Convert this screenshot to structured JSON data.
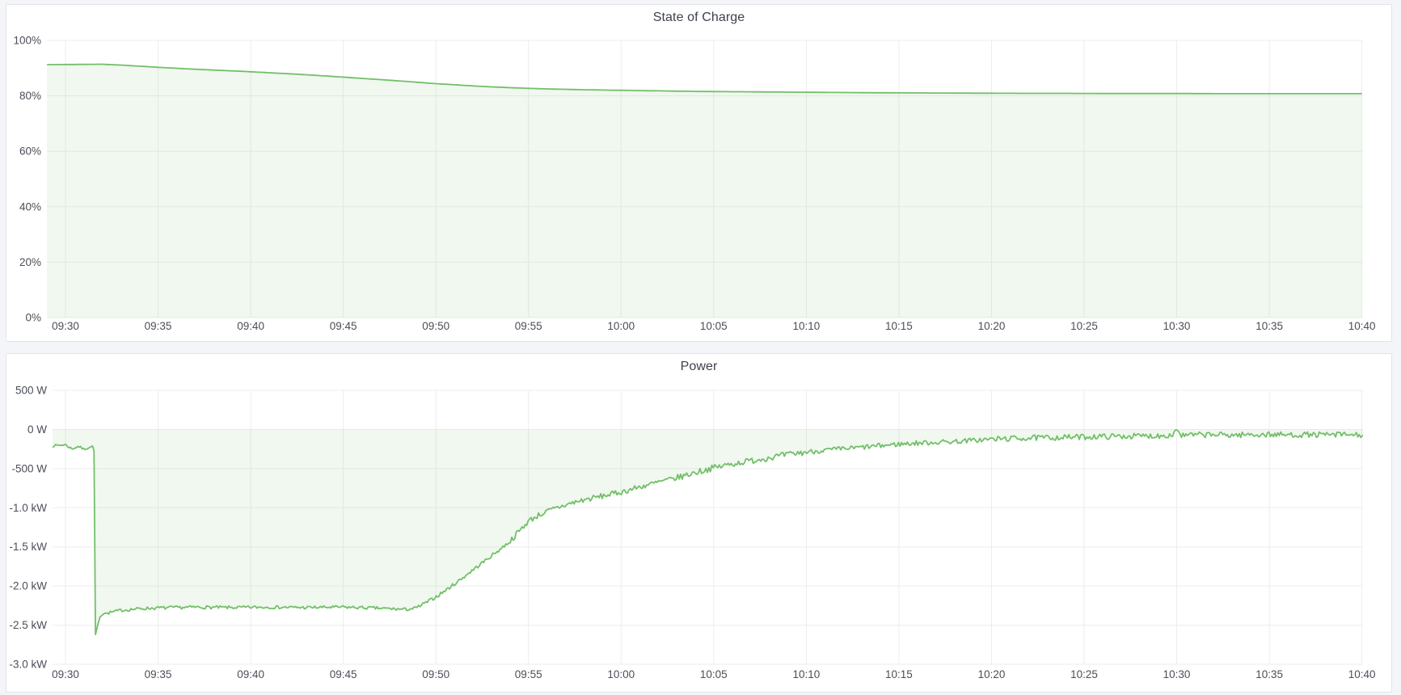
{
  "page": {
    "background_color": "#f4f5f9",
    "panel_background": "#ffffff",
    "panel_border_color": "#e2e3e9",
    "grid_color": "#ededf0",
    "axis_text_color": "#4c4e58",
    "title_color": "#3e414b",
    "accent_green": "#73bf69"
  },
  "panels": [
    {
      "title": "State of Charge"
    },
    {
      "title": "Power"
    }
  ],
  "chart_data": [
    {
      "type": "area",
      "title": "State of Charge",
      "ylabel": "",
      "xlabel": "",
      "legend": "none",
      "grid": "on",
      "line_color": "#73bf69",
      "fill_color": "rgba(115,191,105,0.11)",
      "baseline_value": 0,
      "ylim": [
        0,
        100
      ],
      "xlim": [
        -1,
        70.1
      ],
      "sample_step": 0.25,
      "noise_seed": 11,
      "noise_segments": [],
      "y_ticks": [
        {
          "value": 100,
          "label": "100%"
        },
        {
          "value": 80,
          "label": "80%"
        },
        {
          "value": 60,
          "label": "60%"
        },
        {
          "value": 40,
          "label": "40%"
        },
        {
          "value": 20,
          "label": "20%"
        },
        {
          "value": 0,
          "label": "0%"
        }
      ],
      "x_ticks": [
        {
          "t": 0,
          "label": "09:30"
        },
        {
          "t": 5,
          "label": "09:35"
        },
        {
          "t": 10,
          "label": "09:40"
        },
        {
          "t": 15,
          "label": "09:45"
        },
        {
          "t": 20,
          "label": "09:50"
        },
        {
          "t": 25,
          "label": "09:55"
        },
        {
          "t": 30,
          "label": "10:00"
        },
        {
          "t": 35,
          "label": "10:05"
        },
        {
          "t": 40,
          "label": "10:10"
        },
        {
          "t": 45,
          "label": "10:15"
        },
        {
          "t": 50,
          "label": "10:20"
        },
        {
          "t": 55,
          "label": "10:25"
        },
        {
          "t": 60,
          "label": "10:30"
        },
        {
          "t": 65,
          "label": "10:35"
        },
        {
          "t": 70,
          "label": "10:40"
        }
      ],
      "unit": "percent",
      "points": [
        [
          -1,
          91.25
        ],
        [
          0,
          91.3
        ],
        [
          1,
          91.35
        ],
        [
          2,
          91.4
        ],
        [
          3,
          91.1
        ],
        [
          4,
          90.7
        ],
        [
          5,
          90.3
        ],
        [
          6,
          89.95
        ],
        [
          7,
          89.6
        ],
        [
          8,
          89.3
        ],
        [
          9,
          89.0
        ],
        [
          10,
          88.7
        ],
        [
          11,
          88.35
        ],
        [
          12,
          88.0
        ],
        [
          13,
          87.6
        ],
        [
          14,
          87.2
        ],
        [
          15,
          86.75
        ],
        [
          16,
          86.3
        ],
        [
          17,
          85.85
        ],
        [
          18,
          85.4
        ],
        [
          19,
          84.9
        ],
        [
          20,
          84.4
        ],
        [
          21,
          84.0
        ],
        [
          22,
          83.6
        ],
        [
          23,
          83.25
        ],
        [
          24,
          82.95
        ],
        [
          25,
          82.7
        ],
        [
          26,
          82.5
        ],
        [
          27,
          82.35
        ],
        [
          28,
          82.2
        ],
        [
          29,
          82.1
        ],
        [
          30,
          82.0
        ],
        [
          31,
          81.9
        ],
        [
          32,
          81.8
        ],
        [
          33,
          81.7
        ],
        [
          34,
          81.6
        ],
        [
          35,
          81.55
        ],
        [
          36,
          81.5
        ],
        [
          37,
          81.45
        ],
        [
          38,
          81.4
        ],
        [
          39,
          81.35
        ],
        [
          40,
          81.3
        ],
        [
          42,
          81.2
        ],
        [
          44,
          81.1
        ],
        [
          46,
          81.05
        ],
        [
          48,
          81.0
        ],
        [
          50,
          80.95
        ],
        [
          52,
          80.9
        ],
        [
          54,
          80.9
        ],
        [
          56,
          80.85
        ],
        [
          58,
          80.85
        ],
        [
          60,
          80.85
        ],
        [
          62,
          80.8
        ],
        [
          64,
          80.8
        ],
        [
          66,
          80.8
        ],
        [
          68,
          80.8
        ],
        [
          70.1,
          80.8
        ]
      ]
    },
    {
      "type": "area",
      "title": "Power",
      "ylabel": "",
      "xlabel": "",
      "legend": "none",
      "grid": "on",
      "line_color": "#73bf69",
      "fill_color": "rgba(115,191,105,0.11)",
      "baseline_value": 0,
      "ylim": [
        -3000,
        500
      ],
      "xlim": [
        -0.7,
        70.1
      ],
      "sample_step": 0.08,
      "noise_seed": 7,
      "noise_segments": [
        [
          -0.7,
          1.5,
          15
        ],
        [
          1.5,
          2.3,
          0
        ],
        [
          2.3,
          18.6,
          20
        ],
        [
          18.6,
          24,
          22
        ],
        [
          24,
          33,
          36
        ],
        [
          33,
          40,
          40
        ],
        [
          40,
          50,
          32
        ],
        [
          50,
          70.2,
          36
        ]
      ],
      "y_ticks": [
        {
          "value": 500,
          "label": "500 W"
        },
        {
          "value": 0,
          "label": "0 W"
        },
        {
          "value": -500,
          "label": "-500 W"
        },
        {
          "value": -1000,
          "label": "-1.0 kW"
        },
        {
          "value": -1500,
          "label": "-1.5 kW"
        },
        {
          "value": -2000,
          "label": "-2.0 kW"
        },
        {
          "value": -2500,
          "label": "-2.5 kW"
        },
        {
          "value": -3000,
          "label": "-3.0 kW"
        }
      ],
      "x_ticks": [
        {
          "t": 0,
          "label": "09:30"
        },
        {
          "t": 5,
          "label": "09:35"
        },
        {
          "t": 10,
          "label": "09:40"
        },
        {
          "t": 15,
          "label": "09:45"
        },
        {
          "t": 20,
          "label": "09:50"
        },
        {
          "t": 25,
          "label": "09:55"
        },
        {
          "t": 30,
          "label": "10:00"
        },
        {
          "t": 35,
          "label": "10:05"
        },
        {
          "t": 40,
          "label": "10:10"
        },
        {
          "t": 45,
          "label": "10:15"
        },
        {
          "t": 50,
          "label": "10:20"
        },
        {
          "t": 55,
          "label": "10:25"
        },
        {
          "t": 60,
          "label": "10:30"
        },
        {
          "t": 65,
          "label": "10:35"
        },
        {
          "t": 70,
          "label": "10:40"
        }
      ],
      "unit": "watt",
      "points": [
        [
          -0.7,
          -210
        ],
        [
          -0.3,
          -200
        ],
        [
          0,
          -195
        ],
        [
          0.35,
          -250
        ],
        [
          0.7,
          -215
        ],
        [
          1,
          -255
        ],
        [
          1.3,
          -225
        ],
        [
          1.5,
          -218
        ],
        [
          1.56,
          -300
        ],
        [
          1.62,
          -2620
        ],
        [
          1.72,
          -2520
        ],
        [
          1.85,
          -2400
        ],
        [
          2.1,
          -2350
        ],
        [
          2.4,
          -2340
        ],
        [
          3,
          -2310
        ],
        [
          4,
          -2290
        ],
        [
          5,
          -2280
        ],
        [
          7,
          -2270
        ],
        [
          9,
          -2275
        ],
        [
          11,
          -2270
        ],
        [
          13,
          -2275
        ],
        [
          15,
          -2270
        ],
        [
          16.5,
          -2280
        ],
        [
          17.5,
          -2290
        ],
        [
          18.3,
          -2300
        ],
        [
          18.9,
          -2285
        ],
        [
          19.5,
          -2210
        ],
        [
          20,
          -2140
        ],
        [
          20.5,
          -2060
        ],
        [
          21,
          -1975
        ],
        [
          21.5,
          -1885
        ],
        [
          22,
          -1795
        ],
        [
          22.5,
          -1705
        ],
        [
          23,
          -1615
        ],
        [
          23.5,
          -1525
        ],
        [
          24,
          -1430
        ],
        [
          24.5,
          -1300
        ],
        [
          25,
          -1170
        ],
        [
          25.5,
          -1100
        ],
        [
          26,
          -1050
        ],
        [
          26.5,
          -1005
        ],
        [
          27,
          -965
        ],
        [
          27.5,
          -930
        ],
        [
          28,
          -900
        ],
        [
          28.5,
          -875
        ],
        [
          29,
          -850
        ],
        [
          29.5,
          -825
        ],
        [
          30,
          -800
        ],
        [
          31,
          -735
        ],
        [
          32,
          -675
        ],
        [
          33,
          -620
        ],
        [
          34,
          -550
        ],
        [
          35,
          -490
        ],
        [
          36,
          -440
        ],
        [
          37,
          -400
        ],
        [
          38,
          -360
        ],
        [
          39,
          -322
        ],
        [
          40,
          -290
        ],
        [
          41,
          -265
        ],
        [
          42,
          -248
        ],
        [
          43,
          -228
        ],
        [
          44,
          -208
        ],
        [
          45,
          -188
        ],
        [
          46,
          -174
        ],
        [
          47,
          -164
        ],
        [
          48,
          -154
        ],
        [
          49,
          -140
        ],
        [
          50,
          -125
        ],
        [
          51,
          -116
        ],
        [
          52,
          -110
        ],
        [
          53,
          -105
        ],
        [
          54,
          -100
        ],
        [
          55,
          -95
        ],
        [
          56,
          -90
        ],
        [
          57,
          -87
        ],
        [
          58,
          -84
        ],
        [
          59,
          -80
        ],
        [
          59.8,
          -70
        ],
        [
          60,
          15
        ],
        [
          60.25,
          -78
        ],
        [
          61,
          -70
        ],
        [
          62,
          -67
        ],
        [
          63,
          -72
        ],
        [
          64,
          -66
        ],
        [
          65,
          -65
        ],
        [
          66,
          -70
        ],
        [
          67,
          -66
        ],
        [
          68,
          -70
        ],
        [
          69,
          -66
        ],
        [
          70.1,
          -72
        ]
      ]
    }
  ]
}
